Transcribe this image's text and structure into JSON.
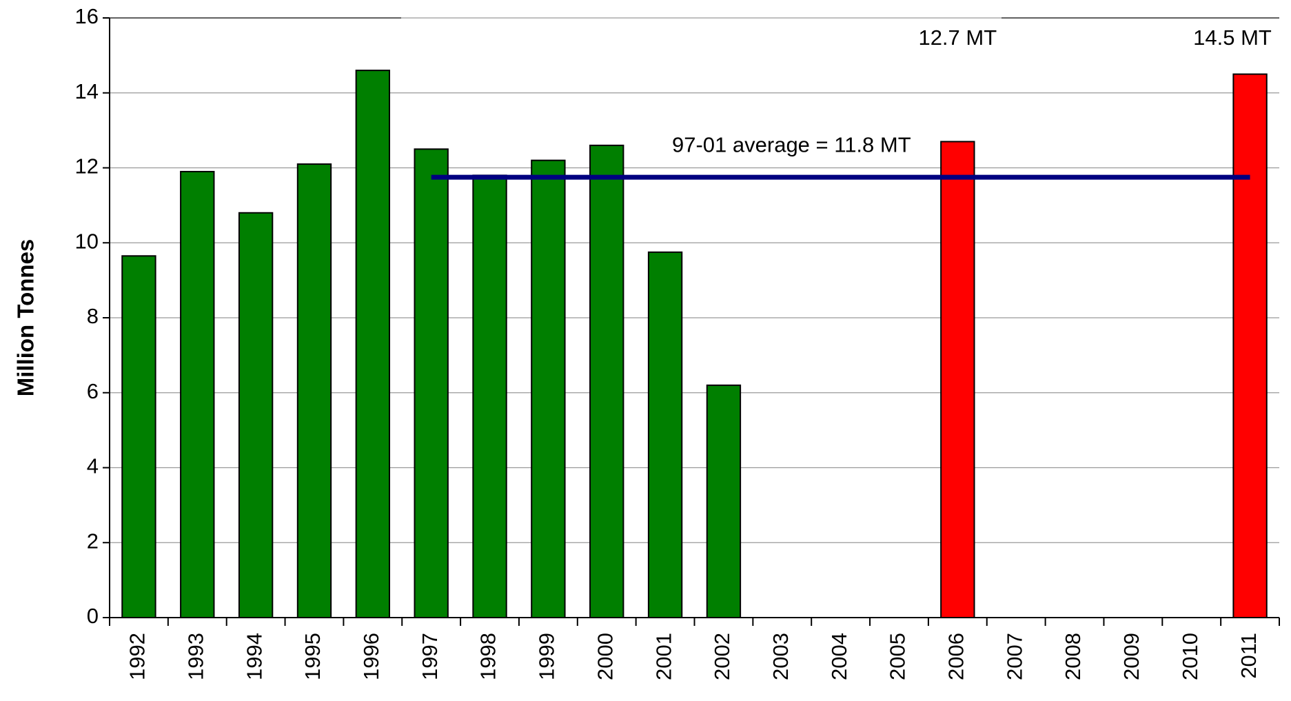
{
  "chart_data": {
    "type": "bar",
    "ylabel": "Million Tonnes",
    "categories": [
      "1992",
      "1993",
      "1994",
      "1995",
      "1996",
      "1997",
      "1998",
      "1999",
      "2000",
      "2001",
      "2002",
      "2003",
      "2004",
      "2005",
      "2006",
      "2007",
      "2008",
      "2009",
      "2010",
      "2011"
    ],
    "values": [
      9.65,
      11.9,
      10.8,
      12.1,
      14.6,
      12.5,
      11.8,
      12.2,
      12.6,
      9.75,
      6.2,
      null,
      null,
      null,
      12.7,
      null,
      null,
      null,
      null,
      14.5
    ],
    "value_labels": [
      null,
      null,
      null,
      null,
      null,
      null,
      null,
      null,
      null,
      null,
      null,
      null,
      null,
      null,
      "12.7 MT",
      null,
      null,
      null,
      null,
      "14.5 MT"
    ],
    "colors": [
      "#007f00",
      "#007f00",
      "#007f00",
      "#007f00",
      "#007f00",
      "#007f00",
      "#007f00",
      "#007f00",
      "#007f00",
      "#007f00",
      "#007f00",
      null,
      null,
      null,
      "#ff0000",
      null,
      null,
      null,
      null,
      "#ff0000"
    ],
    "ylim": [
      0,
      16
    ],
    "yticks": [
      0,
      2,
      4,
      6,
      8,
      10,
      12,
      14,
      16
    ],
    "grid": true,
    "average": {
      "value": 11.75,
      "label": "97-01 average = 11.8 MT",
      "from": "1997",
      "to": "2011",
      "color": "#000080"
    }
  }
}
